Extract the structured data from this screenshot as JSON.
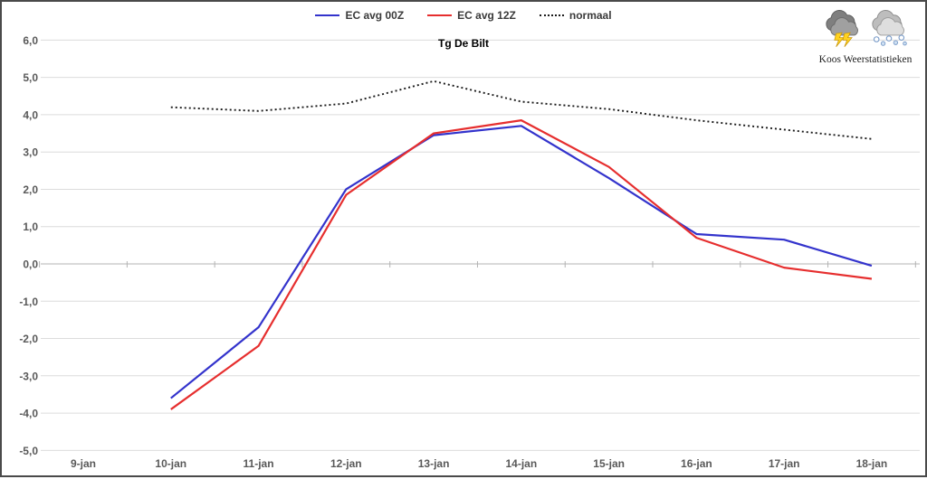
{
  "branding": {
    "text": "Koos Weerstatistieken",
    "icons": [
      "thunderstorm-cloud-icon",
      "snow-cloud-icon"
    ]
  },
  "chart_data": {
    "type": "line",
    "title": "Tg De Bilt",
    "categories": [
      "9-jan",
      "10-jan",
      "11-jan",
      "12-jan",
      "13-jan",
      "14-jan",
      "15-jan",
      "16-jan",
      "17-jan",
      "18-jan"
    ],
    "series": [
      {
        "name": "EC avg 00Z",
        "color": "#3333cc",
        "style": "solid",
        "values": [
          null,
          -3.6,
          -1.7,
          2.0,
          3.45,
          3.7,
          2.3,
          0.8,
          0.65,
          -0.05
        ]
      },
      {
        "name": "EC avg 12Z",
        "color": "#e62e2e",
        "style": "solid",
        "values": [
          null,
          -3.9,
          -2.2,
          1.85,
          3.5,
          3.85,
          2.6,
          0.7,
          -0.1,
          -0.4
        ]
      },
      {
        "name": "normaal",
        "color": "#1a1a1a",
        "style": "dotted",
        "values": [
          null,
          4.2,
          4.1,
          4.3,
          4.9,
          4.35,
          4.15,
          3.85,
          3.6,
          3.35
        ]
      }
    ],
    "ylim": [
      -5,
      6
    ],
    "ytick_step": 1,
    "ytick_labels": [
      "6,0",
      "5,0",
      "4,0",
      "3,0",
      "2,0",
      "1,0",
      "0,0",
      "-1,0",
      "-2,0",
      "-3,0",
      "-4,0",
      "-5,0"
    ],
    "xlabel": "",
    "ylabel": "",
    "grid": true,
    "legend_position": "top-center",
    "value_axis_crosses_at": 0
  }
}
